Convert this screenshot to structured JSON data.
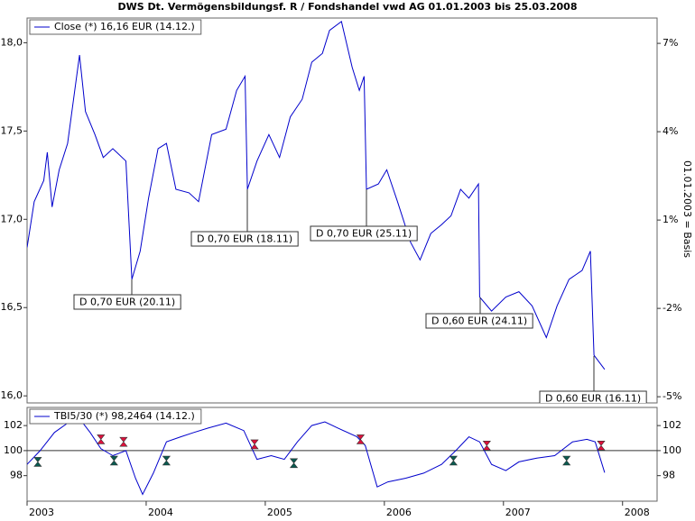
{
  "chart_data": [
    {
      "type": "line",
      "title": "DWS Dt. Vermögensbildungsf. R / Fondshandel vwd AG 01.01.2003 bis 25.03.2008",
      "y2_label": "01.01.2003 = Basis",
      "xlim": [
        2003,
        2008.29
      ],
      "ylim": [
        15.96,
        18.14
      ],
      "yticks": [
        {
          "value": 16,
          "label": "16,0"
        },
        {
          "value": 16.5,
          "label": "16,5"
        },
        {
          "value": 17,
          "label": "17,0"
        },
        {
          "value": 17.5,
          "label": "17,5"
        },
        {
          "value": 18,
          "label": "18,0"
        }
      ],
      "y2lim": [
        -5.21,
        7.86
      ],
      "y2ticks": [
        {
          "value": -5,
          "label": "-5%"
        },
        {
          "value": -2,
          "label": "-2%"
        },
        {
          "value": 1,
          "label": "1%"
        },
        {
          "value": 4,
          "label": "4%"
        },
        {
          "value": 7,
          "label": "7%"
        }
      ],
      "series": [
        {
          "name": "Close (*) 16,16 EUR (14.12.)",
          "color": "#0000cc",
          "x": [
            2003.0,
            2003.06,
            2003.14,
            2003.17,
            2003.21,
            2003.27,
            2003.34,
            2003.44,
            2003.49,
            2003.57,
            2003.64,
            2003.72,
            2003.83,
            2003.88,
            2003.95,
            2004.02,
            2004.1,
            2004.17,
            2004.25,
            2004.36,
            2004.44,
            2004.55,
            2004.67,
            2004.76,
            2004.83,
            2004.85,
            2004.93,
            2005.03,
            2005.12,
            2005.21,
            2005.31,
            2005.39,
            2005.48,
            2005.54,
            2005.64,
            2005.73,
            2005.79,
            2005.83,
            2005.85,
            2005.95,
            2006.02,
            2006.11,
            2006.22,
            2006.3,
            2006.39,
            2006.48,
            2006.56,
            2006.64,
            2006.71,
            2006.79,
            2006.8,
            2006.9,
            2007.02,
            2007.13,
            2007.24,
            2007.36,
            2007.45,
            2007.55,
            2007.66,
            2007.73,
            2007.76,
            2007.85
          ],
          "values": [
            16.84,
            17.1,
            17.22,
            17.38,
            17.07,
            17.28,
            17.43,
            17.93,
            17.61,
            17.48,
            17.35,
            17.4,
            17.33,
            16.66,
            16.82,
            17.12,
            17.4,
            17.43,
            17.17,
            17.15,
            17.1,
            17.48,
            17.51,
            17.73,
            17.81,
            17.17,
            17.33,
            17.48,
            17.35,
            17.58,
            17.68,
            17.89,
            17.94,
            18.07,
            18.12,
            17.86,
            17.73,
            17.81,
            17.17,
            17.2,
            17.28,
            17.1,
            16.87,
            16.77,
            16.92,
            16.97,
            17.02,
            17.17,
            17.12,
            17.2,
            16.56,
            16.48,
            16.56,
            16.59,
            16.51,
            16.33,
            16.51,
            16.66,
            16.71,
            16.82,
            16.23,
            16.15
          ]
        }
      ],
      "annotations": [
        "D 0,70 EUR (20.11)",
        "D 0,70 EUR (18.11)",
        "D 0,70 EUR (25.11)",
        "D 0,60 EUR (24.11)",
        "D 0,60 EUR (16.11)"
      ]
    },
    {
      "type": "line",
      "xlim": [
        2003,
        2008.29
      ],
      "xticks": [
        2003,
        2004,
        2005,
        2006,
        2007,
        2008
      ],
      "ylim": [
        95.96,
        103.45
      ],
      "yticks": [
        98,
        100,
        102
      ],
      "hline": 100,
      "series": [
        {
          "name": "TBI5/30 (*) 98,2464 (14.12.)",
          "color": "#0000cc",
          "x": [
            2003.0,
            2003.11,
            2003.23,
            2003.34,
            2003.42,
            2003.53,
            2003.62,
            2003.72,
            2003.83,
            2003.91,
            2003.97,
            2004.06,
            2004.17,
            2004.29,
            2004.4,
            2004.52,
            2004.67,
            2004.82,
            2004.93,
            2005.05,
            2005.16,
            2005.27,
            2005.39,
            2005.5,
            2005.61,
            2005.77,
            2005.84,
            2005.94,
            2006.03,
            2006.18,
            2006.33,
            2006.48,
            2006.6,
            2006.71,
            2006.8,
            2006.9,
            2007.02,
            2007.13,
            2007.28,
            2007.43,
            2007.58,
            2007.7,
            2007.77,
            2007.85
          ],
          "values": [
            98.9,
            100.0,
            101.45,
            102.2,
            102.8,
            101.45,
            100.15,
            99.6,
            100.0,
            97.8,
            96.5,
            98.2,
            100.7,
            101.1,
            101.45,
            101.8,
            102.2,
            101.6,
            99.3,
            99.6,
            99.3,
            100.7,
            102.0,
            102.3,
            101.8,
            101.1,
            100.4,
            97.1,
            97.5,
            97.8,
            98.2,
            98.9,
            100.0,
            101.1,
            100.7,
            98.9,
            98.4,
            99.1,
            99.4,
            99.6,
            100.7,
            100.9,
            100.7,
            98.2464
          ]
        },
        {
          "marker": "sell",
          "color": "#e0103c",
          "x": [
            2003.62,
            2003.81,
            2004.91,
            2005.8,
            2006.86,
            2007.82
          ],
          "values": [
            100.9,
            100.7,
            100.5,
            100.9,
            100.4,
            100.4
          ]
        },
        {
          "marker": "buy",
          "color": "#0a5a50",
          "x": [
            2003.09,
            2003.73,
            2004.17,
            2005.24,
            2006.58,
            2007.53
          ],
          "values": [
            99.1,
            99.2,
            99.2,
            99.0,
            99.2,
            99.2
          ]
        }
      ]
    }
  ]
}
